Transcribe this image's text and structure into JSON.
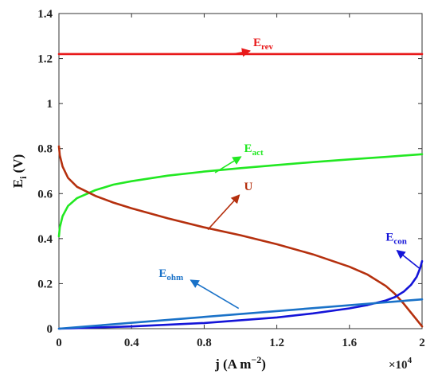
{
  "chart_data": {
    "type": "line",
    "title": "",
    "xlabel": {
      "base": "j (A m",
      "sup": "−2",
      "tail": ")"
    },
    "ylabel": {
      "base": "E",
      "sub": "i",
      "tail": " (V)"
    },
    "x_multiplier": {
      "base": "×10",
      "exp": "4"
    },
    "xlim": [
      0,
      2.0
    ],
    "ylim": [
      0,
      1.4
    ],
    "xticks": [
      0,
      0.4,
      0.8,
      1.2,
      1.6,
      2.0
    ],
    "xtick_labels": [
      "0",
      "0.4",
      "0.8",
      "1.2",
      "1.6",
      "2"
    ],
    "yticks": [
      0,
      0.2,
      0.4,
      0.6,
      0.8,
      1.0,
      1.2,
      1.4
    ],
    "ytick_labels": [
      "0",
      "0.2",
      "0.4",
      "0.6",
      "0.8",
      "1",
      "1.2",
      "1.4"
    ],
    "grid": false,
    "legend": "none",
    "series": [
      {
        "name": "E_rev",
        "color": "#e8191a",
        "x": [
          0,
          2.0
        ],
        "y": [
          1.22,
          1.22
        ]
      },
      {
        "name": "E_act",
        "color": "#22e822",
        "x": [
          0,
          0.005,
          0.02,
          0.05,
          0.1,
          0.2,
          0.3,
          0.4,
          0.6,
          0.8,
          1.0,
          1.2,
          1.4,
          1.6,
          1.8,
          2.0
        ],
        "y": [
          0.41,
          0.45,
          0.5,
          0.545,
          0.58,
          0.615,
          0.64,
          0.655,
          0.68,
          0.698,
          0.713,
          0.727,
          0.74,
          0.752,
          0.763,
          0.775
        ]
      },
      {
        "name": "U",
        "color": "#b5300e",
        "x": [
          0,
          0.005,
          0.02,
          0.05,
          0.1,
          0.2,
          0.3,
          0.4,
          0.6,
          0.8,
          1.0,
          1.2,
          1.4,
          1.6,
          1.7,
          1.8,
          1.85,
          1.9,
          1.94,
          1.97,
          1.99,
          2.0
        ],
        "y": [
          0.81,
          0.77,
          0.72,
          0.67,
          0.63,
          0.59,
          0.56,
          0.535,
          0.49,
          0.45,
          0.415,
          0.375,
          0.33,
          0.275,
          0.24,
          0.19,
          0.155,
          0.11,
          0.07,
          0.04,
          0.02,
          0.01
        ]
      },
      {
        "name": "E_con",
        "color": "#1414d8",
        "x": [
          0,
          0.4,
          0.8,
          1.2,
          1.4,
          1.6,
          1.7,
          1.8,
          1.85,
          1.9,
          1.94,
          1.97,
          1.99,
          2.0
        ],
        "y": [
          0,
          0.01,
          0.025,
          0.05,
          0.068,
          0.09,
          0.105,
          0.125,
          0.14,
          0.165,
          0.195,
          0.23,
          0.27,
          0.3
        ]
      },
      {
        "name": "E_ohm",
        "color": "#1a72c8",
        "x": [
          0,
          2.0
        ],
        "y": [
          0,
          0.13
        ]
      }
    ],
    "annotations": [
      {
        "text": "E",
        "sub": "rev",
        "series": "E_rev",
        "color": "#e8191a",
        "label_at": [
          1.07,
          1.255
        ],
        "arrow_to": [
          0.96,
          1.22
        ]
      },
      {
        "text": "E",
        "sub": "act",
        "series": "E_act",
        "color": "#22e822",
        "label_at": [
          1.02,
          0.785
        ],
        "arrow_to": [
          0.86,
          0.693
        ]
      },
      {
        "text": "U",
        "sub": "",
        "series": "U",
        "color": "#b5300e",
        "label_at": [
          1.02,
          0.615
        ],
        "arrow_to": [
          0.82,
          0.44
        ]
      },
      {
        "text": "E",
        "sub": "con",
        "series": "E_con",
        "color": "#1414d8",
        "label_at": [
          1.8,
          0.39
        ],
        "arrow_to": [
          1.99,
          0.265
        ]
      },
      {
        "text": "E",
        "sub": "ohm",
        "series": "E_ohm",
        "color": "#1a72c8",
        "label_at": [
          0.55,
          0.23
        ],
        "arrow_to": [
          0.99,
          0.09
        ]
      }
    ]
  }
}
